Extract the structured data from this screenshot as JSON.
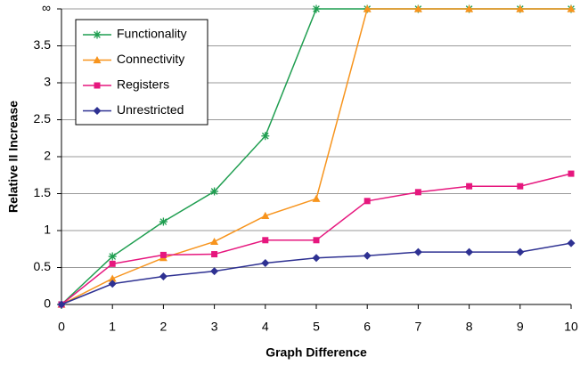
{
  "chart_data": {
    "type": "line",
    "x_label": "Graph Difference",
    "y_label": "Relative II Increase",
    "x": [
      0,
      1,
      2,
      3,
      4,
      5,
      6,
      7,
      8,
      9,
      10
    ],
    "xlim": [
      0,
      10
    ],
    "xticks": [
      0,
      1,
      2,
      3,
      4,
      5,
      6,
      7,
      8,
      9,
      10
    ],
    "ylim": [
      0,
      4
    ],
    "yticks": [
      0,
      0.5,
      1,
      1.5,
      2,
      2.5,
      3,
      3.5,
      {
        "value": 4,
        "label": "∞"
      }
    ],
    "grid": true,
    "legend": "upper-left",
    "series": [
      {
        "name": "Functionality",
        "color": "#1f9e50",
        "marker": "star",
        "values": [
          0,
          0.65,
          1.12,
          1.53,
          2.28,
          4,
          4,
          4,
          4,
          4,
          4
        ]
      },
      {
        "name": "Connectivity",
        "color": "#f7941d",
        "marker": "triangle",
        "values": [
          0,
          0.35,
          0.63,
          0.85,
          1.2,
          1.43,
          4,
          4,
          4,
          4,
          4
        ]
      },
      {
        "name": "Registers",
        "color": "#e6177e",
        "marker": "square",
        "values": [
          0,
          0.55,
          0.67,
          0.68,
          0.87,
          0.87,
          1.4,
          1.52,
          1.6,
          1.6,
          1.77
        ]
      },
      {
        "name": "Unrestricted",
        "color": "#2e3192",
        "marker": "diamond",
        "values": [
          0,
          0.28,
          0.38,
          0.45,
          0.56,
          0.63,
          0.66,
          0.71,
          0.71,
          0.71,
          0.83
        ]
      }
    ]
  }
}
